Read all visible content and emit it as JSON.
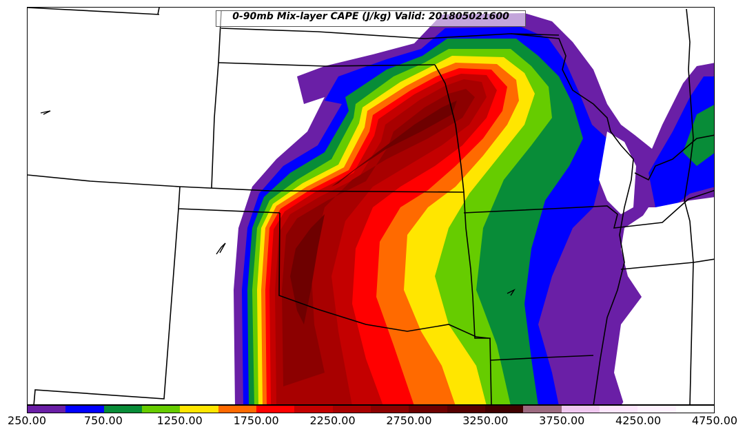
{
  "title": "0-90mb Mix-layer CAPE (J/kg) Valid: 201805021600",
  "colorbar": {
    "colors": [
      "#6a1fa6",
      "#0000ff",
      "#088c38",
      "#66cc00",
      "#ffe600",
      "#ff6a00",
      "#ff0000",
      "#c40000",
      "#a80000",
      "#8c0000",
      "#6e0000",
      "#560000",
      "#400000",
      "#9c6a80",
      "#f0c8f0",
      "#fde6fd",
      "#fff2ff",
      "#ffffff"
    ],
    "labels": [
      "250.00",
      "750.00",
      "1250.00",
      "1750.00",
      "2250.00",
      "2750.00",
      "3250.00",
      "3750.00",
      "4250.00",
      "4750.00"
    ]
  }
}
